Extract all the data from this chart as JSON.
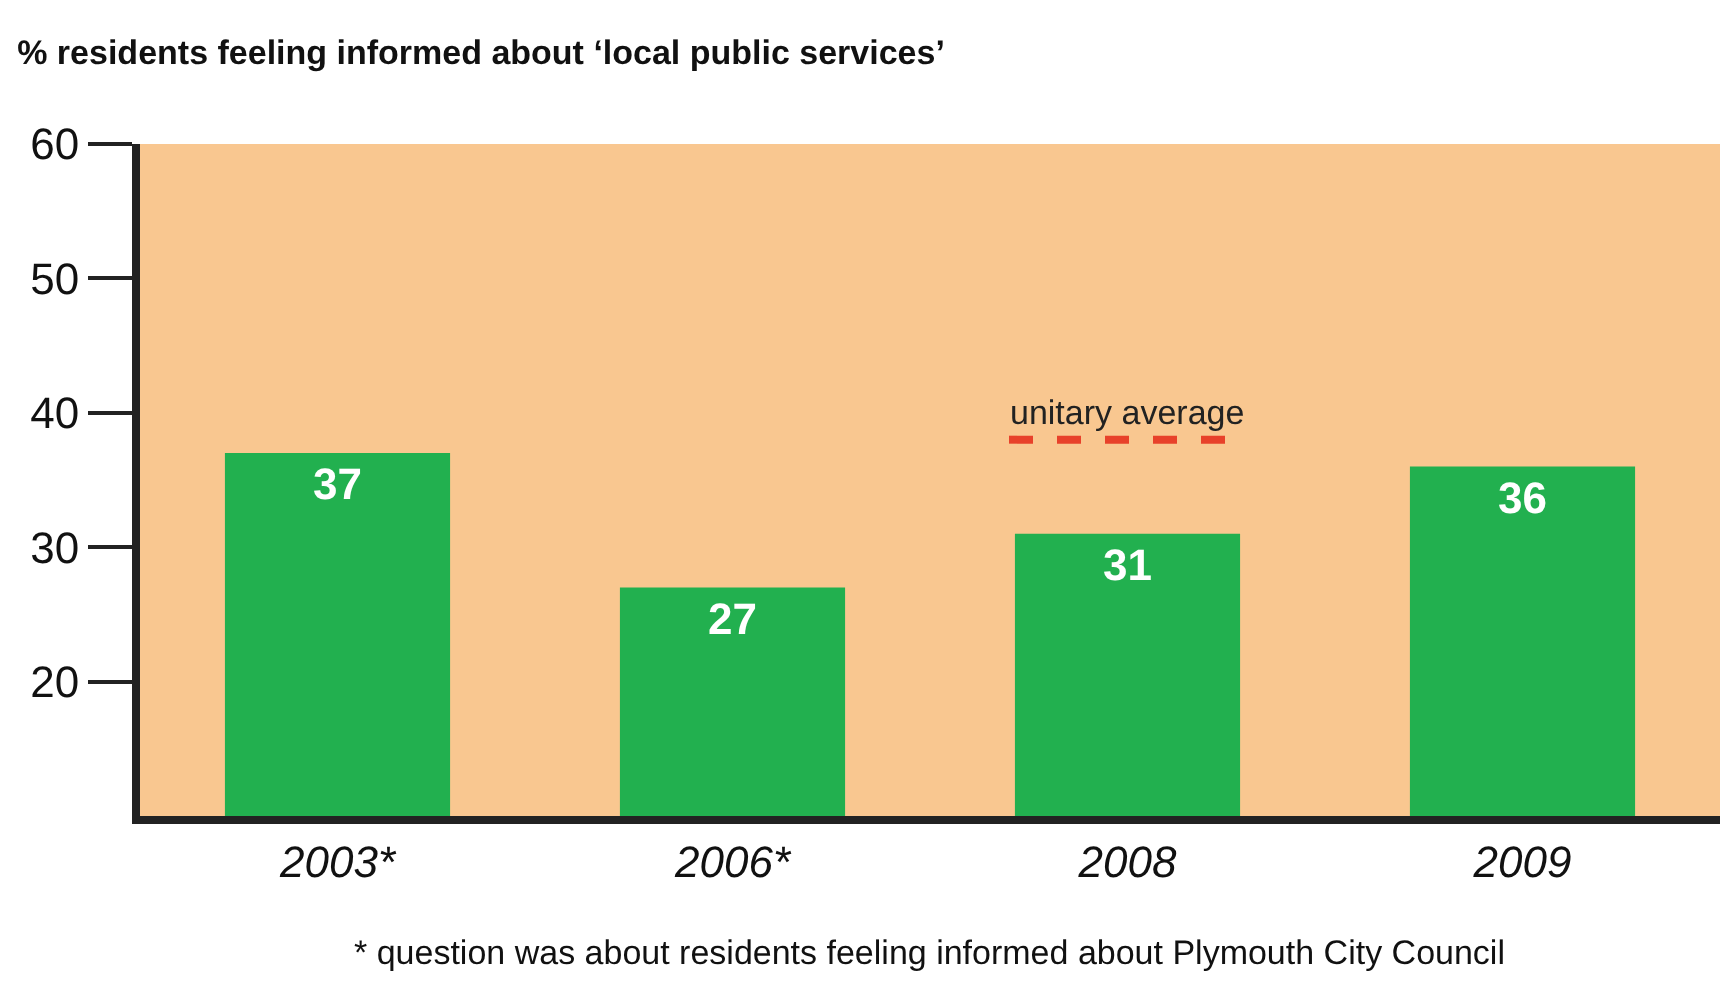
{
  "chart_data": {
    "type": "bar",
    "title": "% residents feeling informed about ‘local public services’",
    "categories": [
      "2003*",
      "2006*",
      "2008",
      "2009"
    ],
    "values": [
      37,
      27,
      31,
      36
    ],
    "color": "#22b04f",
    "data_labels": true,
    "ylim": [
      10,
      60
    ],
    "yticks": [
      20,
      30,
      40,
      50,
      60
    ],
    "grid": false,
    "legend": false,
    "ref_lines": [
      {
        "axis": "y",
        "value": 38,
        "label": "unitary average",
        "color": "#e8412a",
        "line_style": "dashed"
      }
    ],
    "annotations": [
      "* question was about residents feeling informed about Plymouth City Council"
    ]
  }
}
